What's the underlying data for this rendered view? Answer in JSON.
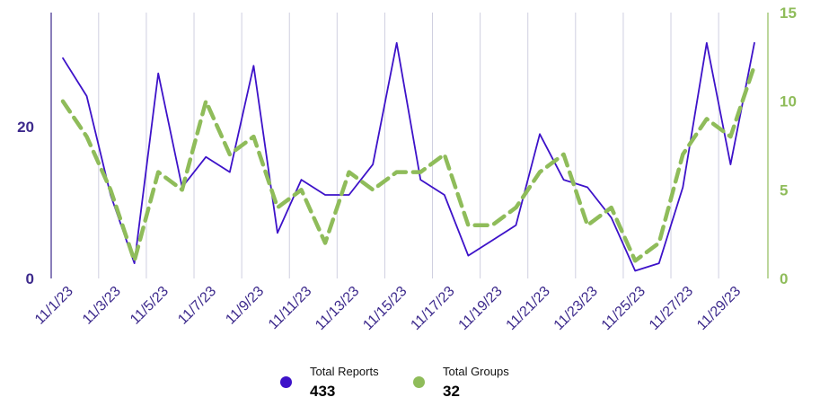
{
  "chart_data": {
    "type": "line",
    "x_tick_labels": [
      "11/1/23",
      "11/3/23",
      "11/5/23",
      "11/7/23",
      "11/9/23",
      "11/11/23",
      "11/13/23",
      "11/15/23",
      "11/17/23",
      "11/19/23",
      "11/21/23",
      "11/23/23",
      "11/25/23",
      "11/27/23",
      "11/29/23"
    ],
    "x": [
      "11/1/23",
      "11/2/23",
      "11/3/23",
      "11/4/23",
      "11/5/23",
      "11/6/23",
      "11/7/23",
      "11/8/23",
      "11/9/23",
      "11/10/23",
      "11/11/23",
      "11/12/23",
      "11/13/23",
      "11/14/23",
      "11/15/23",
      "11/16/23",
      "11/17/23",
      "11/18/23",
      "11/19/23",
      "11/20/23",
      "11/21/23",
      "11/22/23",
      "11/23/23",
      "11/24/23",
      "11/25/23",
      "11/26/23",
      "11/27/23",
      "11/28/23",
      "11/29/23",
      "11/30/23"
    ],
    "series": [
      {
        "name": "Total Reports",
        "axis": "left",
        "color": "#3d12c9",
        "style": "solid",
        "values": [
          29,
          24,
          11,
          2,
          27,
          12,
          16,
          14,
          28,
          6,
          13,
          11,
          11,
          15,
          31,
          13,
          11,
          3,
          5,
          7,
          19,
          13,
          12,
          8,
          1,
          2,
          12,
          31,
          15,
          31
        ]
      },
      {
        "name": "Total Groups",
        "axis": "right",
        "color": "#8fbc5a",
        "style": "dashed",
        "values": [
          10,
          8,
          5,
          1,
          6,
          5,
          10,
          7,
          8,
          4,
          5,
          2,
          6,
          5,
          6,
          6,
          7,
          3,
          3,
          4,
          6,
          7,
          3,
          4,
          1,
          2,
          7,
          9,
          8,
          12
        ]
      }
    ],
    "y_left": {
      "ticks": [
        0,
        20
      ],
      "ylim": [
        0,
        35
      ],
      "color": "#3d2a8c"
    },
    "y_right": {
      "ticks": [
        0,
        5,
        10,
        15
      ],
      "ylim": [
        0,
        15
      ],
      "color": "#8fbc5a"
    },
    "grid": "vertical",
    "legend_position": "bottom"
  },
  "legend": {
    "items": [
      {
        "label": "Total Reports",
        "total": "433",
        "color": "#3d12c9"
      },
      {
        "label": "Total Groups",
        "total": "32",
        "color": "#8fbc5a"
      }
    ]
  }
}
